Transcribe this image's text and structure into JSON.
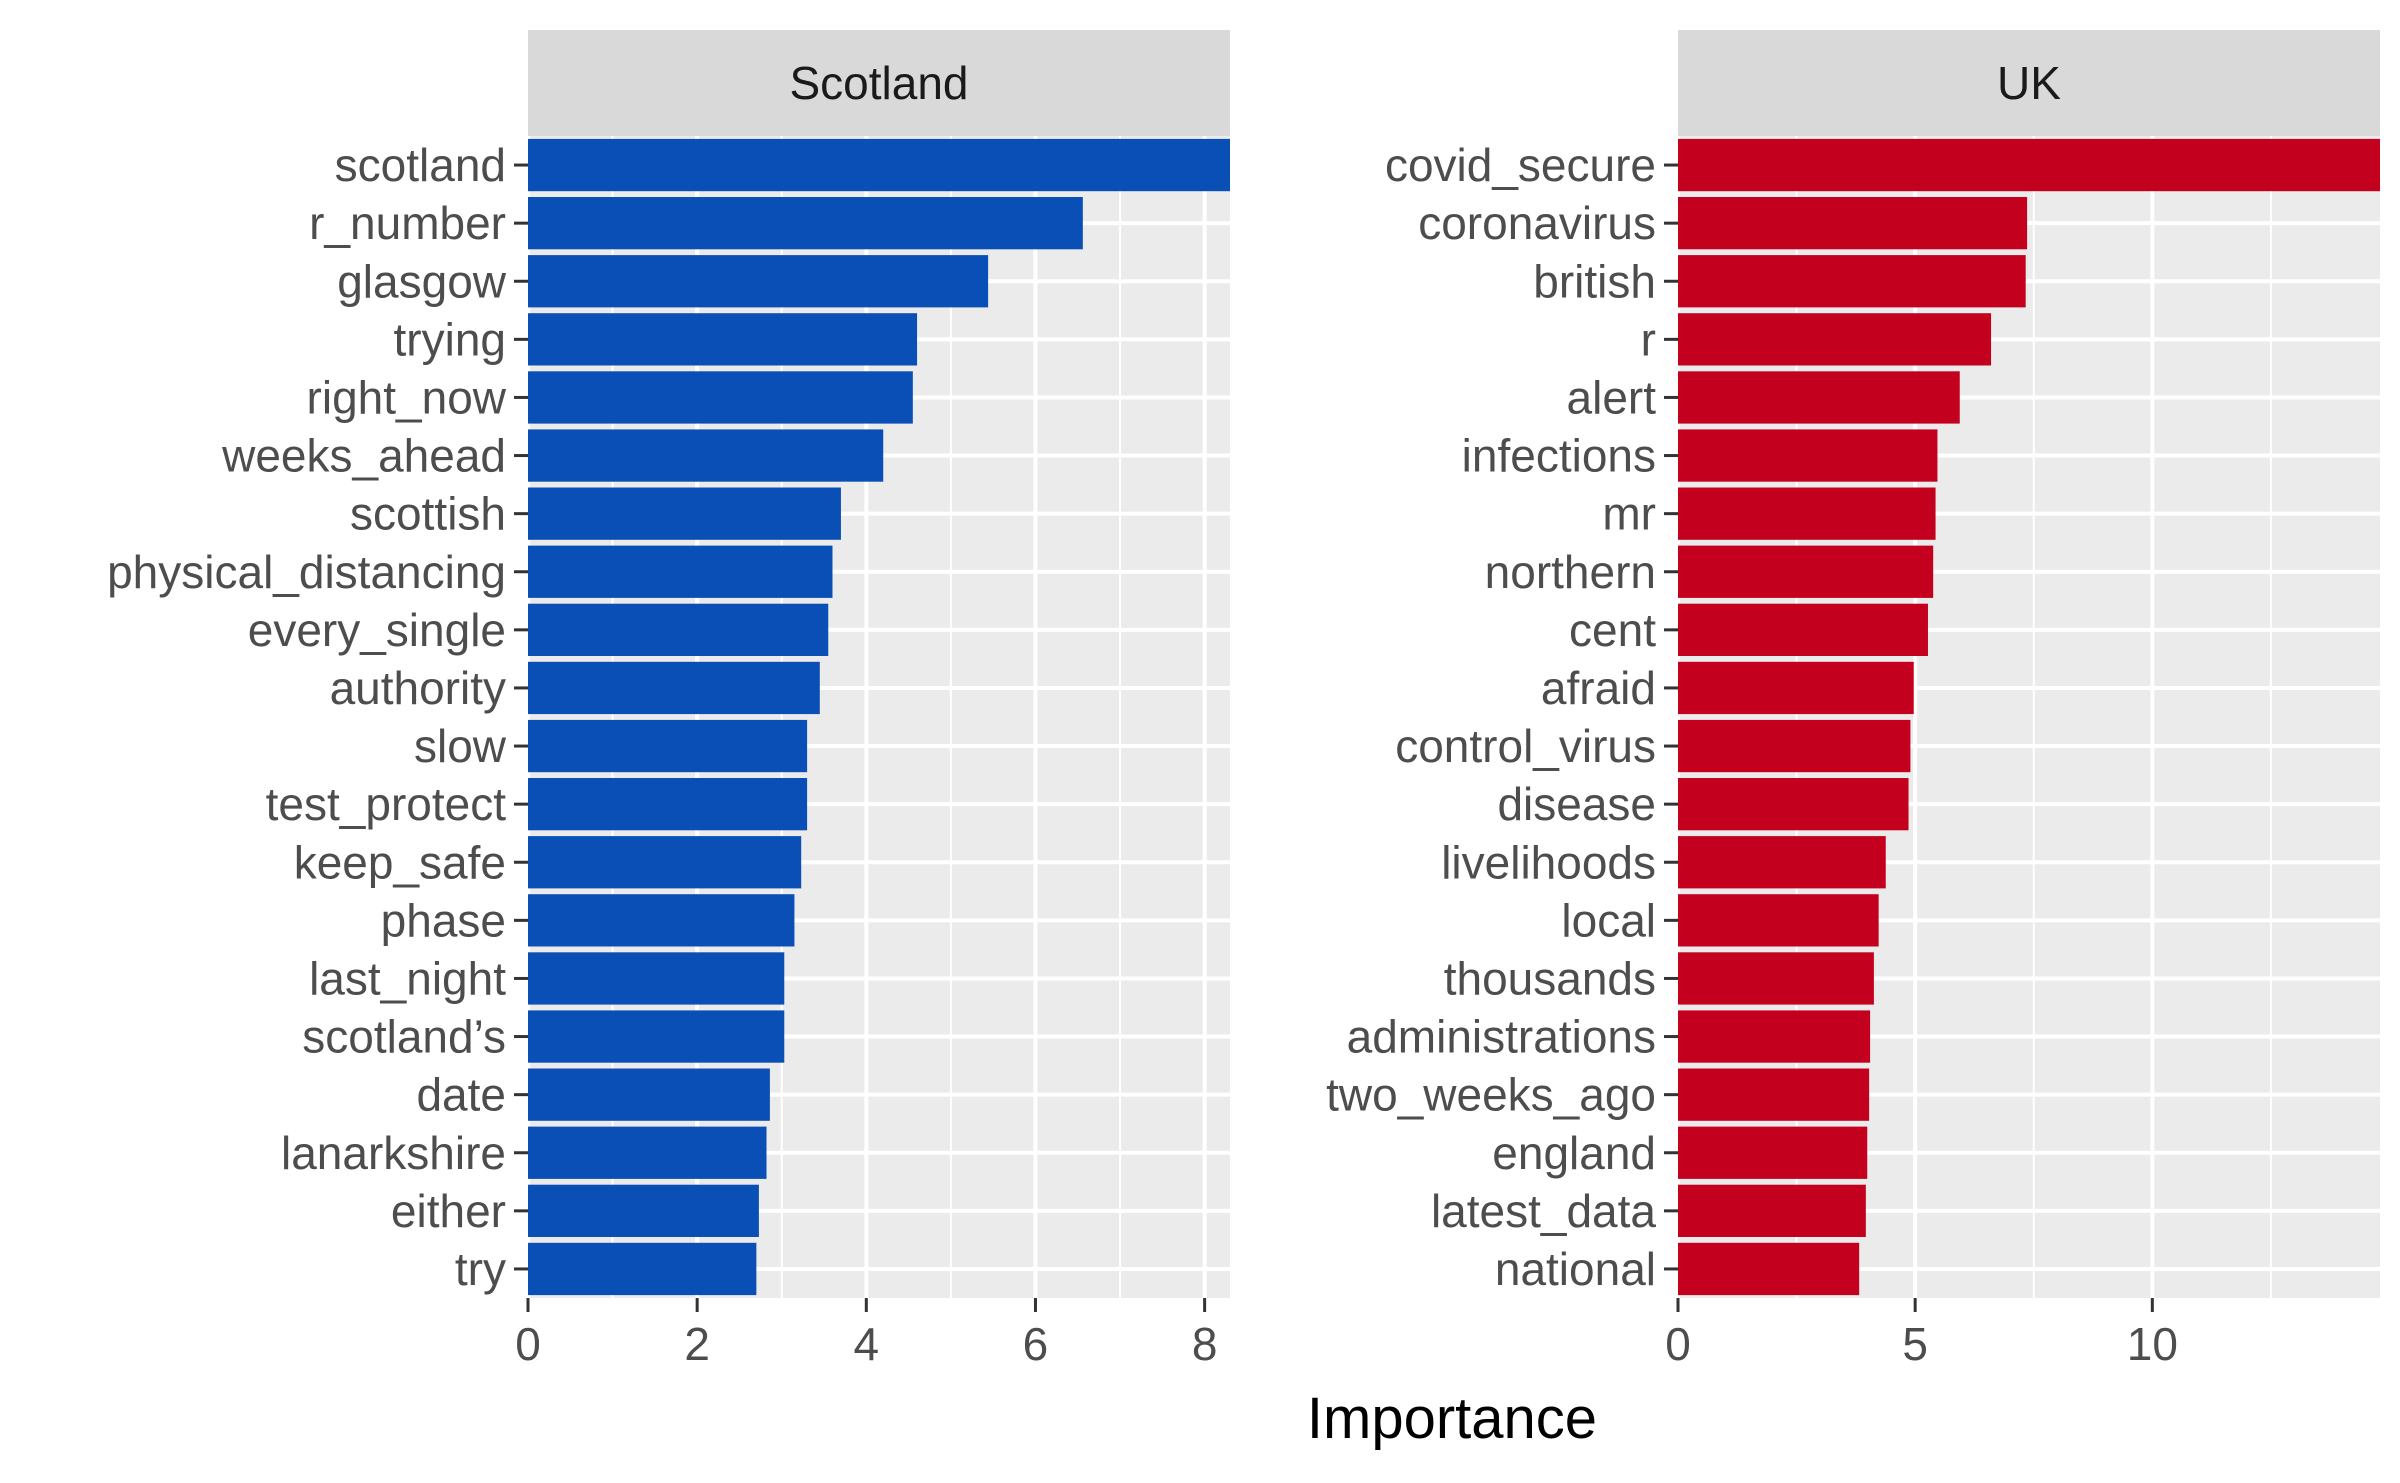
{
  "chart_data": {
    "type": "bar",
    "orientation": "horizontal",
    "xlabel": "Importance",
    "grid": true,
    "facets": [
      {
        "name": "Scotland",
        "color": "#0a4fb5",
        "xlim": [
          0,
          8.3
        ],
        "xticks": [
          0,
          2,
          4,
          6,
          8
        ],
        "categories": [
          "scotland",
          "r_number",
          "glasgow",
          "trying",
          "right_now",
          "weeks_ahead",
          "scottish",
          "physical_distancing",
          "every_single",
          "authority",
          "slow",
          "test_protect",
          "keep_safe",
          "phase",
          "last_night",
          "scotland’s",
          "date",
          "lanarkshire",
          "either",
          "try"
        ],
        "values": [
          8.3,
          6.56,
          5.44,
          4.6,
          4.55,
          4.2,
          3.7,
          3.6,
          3.55,
          3.45,
          3.3,
          3.3,
          3.23,
          3.15,
          3.03,
          3.03,
          2.86,
          2.82,
          2.73,
          2.7
        ]
      },
      {
        "name": "UK",
        "color": "#c4001f",
        "xlim": [
          0,
          14.8
        ],
        "xticks": [
          0,
          5,
          10
        ],
        "categories": [
          "covid_secure",
          "coronavirus",
          "british",
          "r",
          "alert",
          "infections",
          "mr",
          "northern",
          "cent",
          "afraid",
          "control_virus",
          "disease",
          "livelihoods",
          "local",
          "thousands",
          "administrations",
          "two_weeks_ago",
          "england",
          "latest_data",
          "national"
        ],
        "values": [
          14.8,
          7.36,
          7.33,
          6.6,
          5.94,
          5.47,
          5.43,
          5.38,
          5.27,
          4.97,
          4.9,
          4.86,
          4.38,
          4.23,
          4.13,
          4.05,
          4.03,
          3.99,
          3.96,
          3.82
        ]
      }
    ]
  }
}
